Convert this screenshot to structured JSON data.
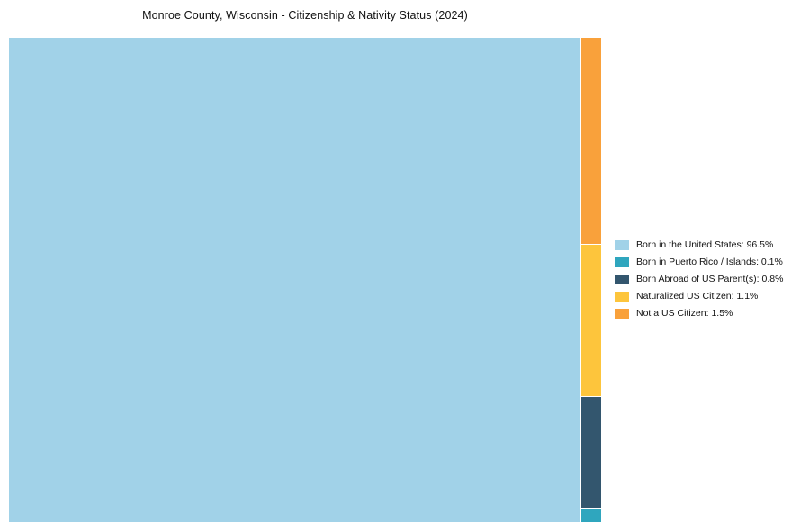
{
  "chart_data": {
    "type": "treemap",
    "title": "Monroe County, Wisconsin - Citizenship & Nativity Status (2024)",
    "unit": "%",
    "segments": [
      {
        "label": "Born in the United States",
        "value": 96.5,
        "color": "#A1D2E8",
        "area": "main"
      },
      {
        "label": "Not a US Citizen",
        "value": 1.5,
        "color": "#F9A13B",
        "area": "right"
      },
      {
        "label": "Naturalized US Citizen",
        "value": 1.1,
        "color": "#FDC53C",
        "area": "right"
      },
      {
        "label": "Born Abroad of US Parent(s)",
        "value": 0.8,
        "color": "#33566E",
        "area": "right"
      },
      {
        "label": "Born in Puerto Rico / Islands",
        "value": 0.1,
        "color": "#2FA6BE",
        "area": "right"
      }
    ],
    "legend": {
      "position": "right",
      "items": [
        {
          "label": "Born in the United States: 96.5%",
          "color": "#A1D2E8"
        },
        {
          "label": "Born in Puerto Rico / Islands: 0.1%",
          "color": "#2FA6BE"
        },
        {
          "label": "Born Abroad of US Parent(s): 0.8%",
          "color": "#33566E"
        },
        {
          "label": "Naturalized US Citizen: 1.1%",
          "color": "#FDC53C"
        },
        {
          "label": "Not a US Citizen: 1.5%",
          "color": "#F9A13B"
        }
      ]
    },
    "layout": {
      "grid": false,
      "legend_position": "right-middle"
    }
  }
}
